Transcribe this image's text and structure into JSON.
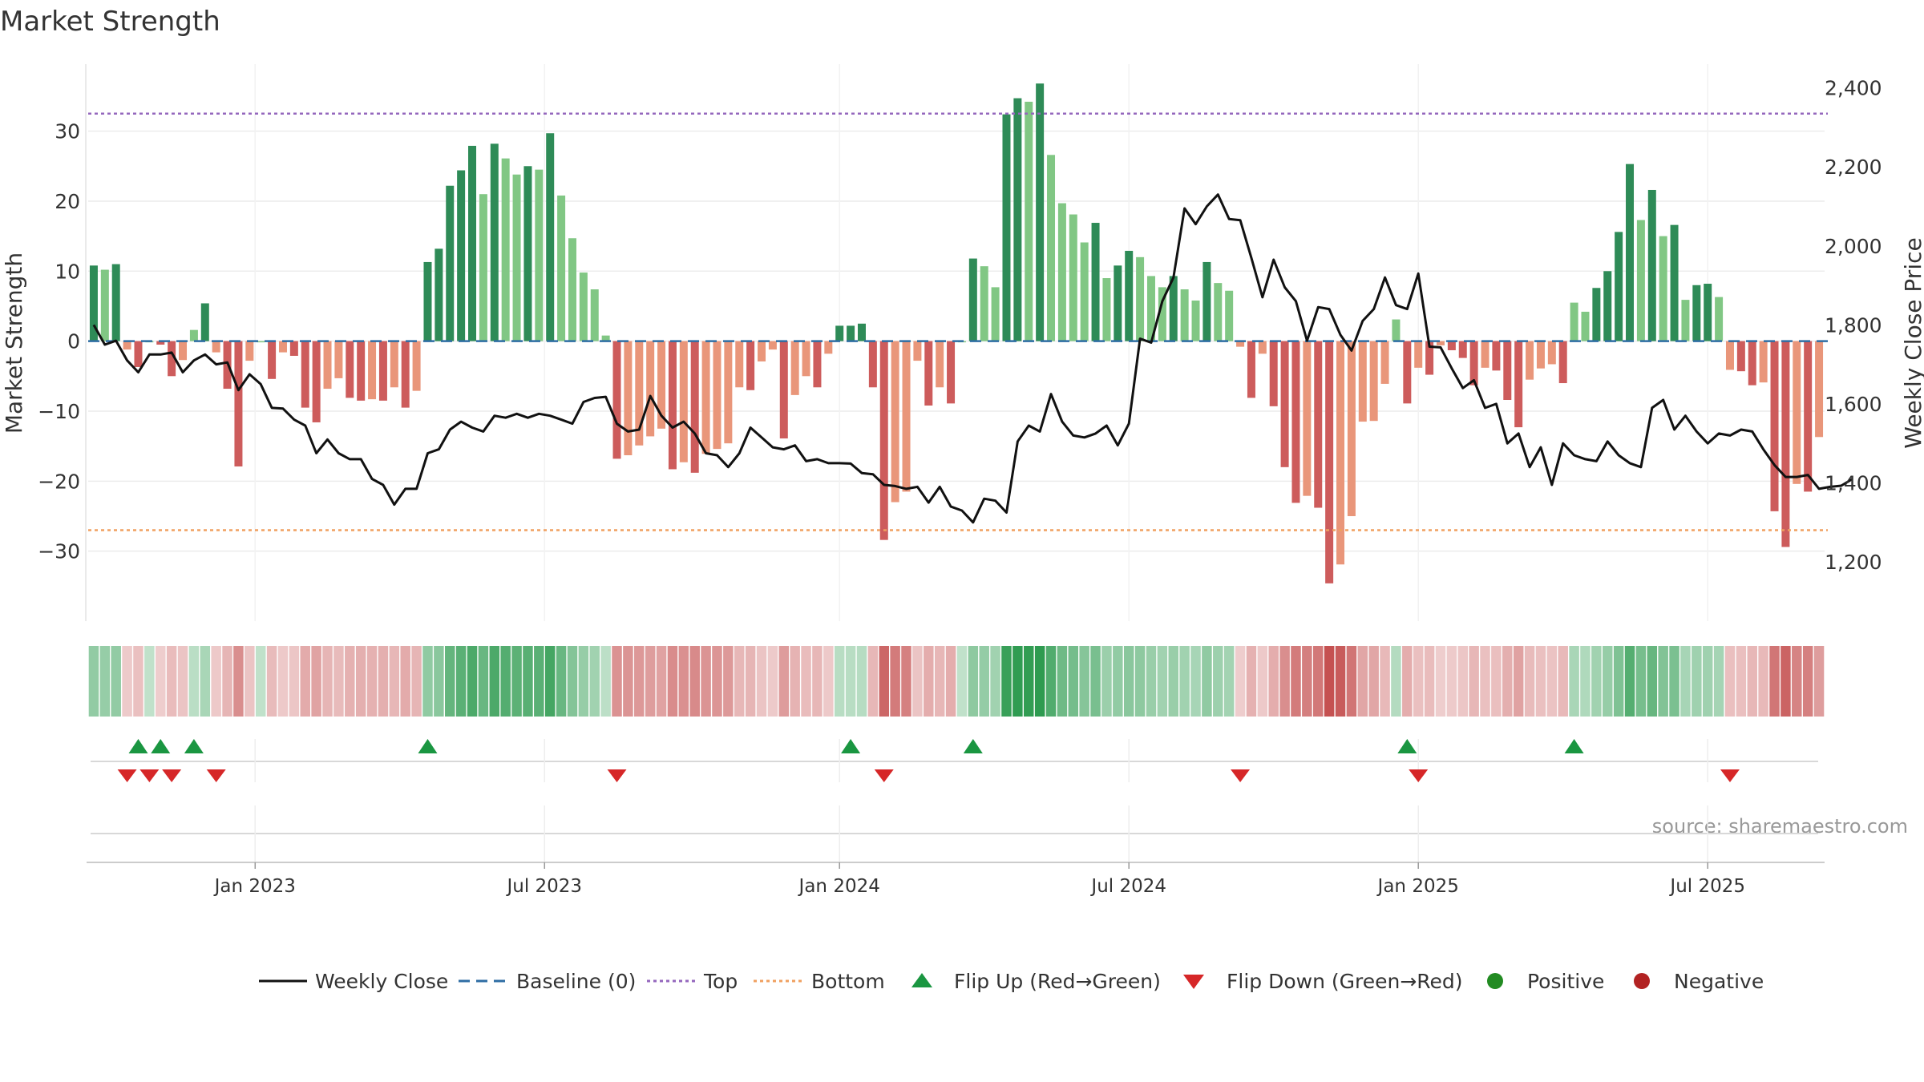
{
  "chart_data": {
    "type": "bar",
    "title": "Market Strength",
    "ylabel_left": "Market Strength",
    "ylabel_right": "Weekly Close Price",
    "source": "source: sharemaestro.com",
    "left_axis": {
      "range": [
        -40,
        39
      ],
      "ticks": [
        30,
        20,
        10,
        0,
        -10,
        -20,
        -30
      ],
      "tick_labels": [
        "30",
        "20",
        "10",
        "0",
        "−10",
        "−20",
        "−30"
      ]
    },
    "right_axis": {
      "range": [
        1050,
        2450
      ],
      "ticks": [
        2400,
        2200,
        2000,
        1800,
        1600,
        1400,
        1200
      ],
      "tick_labels": [
        "2,400",
        "2,200",
        "2,000",
        "1,800",
        "1,600",
        "1,400",
        "1,200"
      ]
    },
    "x_tick_labels": [
      "Jan 2023",
      "Jul 2023",
      "Jan 2024",
      "Jul 2024",
      "Jan 2025",
      "Jul 2025"
    ],
    "x_tick_weeks": [
      15,
      41,
      67.5,
      93.5,
      119.5,
      145.5
    ],
    "reference_lines": {
      "top": 32.5,
      "bottom": -27,
      "baseline": 0
    },
    "strength": [
      10.8,
      10.2,
      11,
      -1.2,
      -3.7,
      0,
      -0.5,
      -5,
      -2.7,
      1.6,
      5.4,
      -1.6,
      -6.8,
      -17.9,
      -2.8,
      0,
      -5.4,
      -1.6,
      -2.1,
      -9.5,
      -11.6,
      -6.8,
      -5.3,
      -8.1,
      -8.5,
      -8.3,
      -8.5,
      -6.6,
      -9.5,
      -7.1,
      11.3,
      13.2,
      22.2,
      24.4,
      27.9,
      21,
      28.2,
      26.1,
      23.8,
      25,
      24.5,
      29.7,
      20.8,
      14.7,
      9.8,
      7.4,
      0.8,
      -16.8,
      -16.3,
      -14.9,
      -13.6,
      -12.5,
      -18.3,
      -17.3,
      -18.8,
      -16.1,
      -15.4,
      -14.6,
      -6.6,
      -7,
      -2.9,
      -1.2,
      -13.9,
      -7.7,
      -5,
      -6.6,
      -1.8,
      2.2,
      2.2,
      2.5,
      -6.6,
      -28.4,
      -23,
      -21.5,
      -2.8,
      -9.2,
      -6.6,
      -8.9,
      0,
      11.8,
      10.7,
      7.7,
      32.4,
      34.7,
      34.2,
      36.8,
      26.6,
      19.7,
      18.1,
      14.1,
      16.9,
      9,
      10.8,
      12.9,
      12,
      9.3,
      7.7,
      9.3,
      7.4,
      5.8,
      11.3,
      8.3,
      7.2,
      -0.8,
      -8.1,
      -1.8,
      -9.3,
      -18,
      -23.1,
      -22.1,
      -23.8,
      -34.6,
      -31.9,
      -25,
      -11.5,
      -11.4,
      -6.1,
      3.1,
      -8.9,
      -3.8,
      -4.8,
      -0.6,
      -1.3,
      -2.4,
      -6.3,
      -3.8,
      -4.2,
      -8.4,
      -12.3,
      -5.5,
      -3.9,
      -3.3,
      -6,
      5.5,
      4.2,
      7.6,
      10,
      15.6,
      25.3,
      17.3,
      21.6,
      15,
      16.6,
      5.9,
      8,
      8.2,
      6.3,
      -4.1,
      -4.3,
      -6.3,
      -5.9,
      -24.3,
      -29.4,
      -20.4,
      -21.5,
      -13.7
    ],
    "weekly_close": [
      1800,
      1750,
      1760,
      1710,
      1680,
      1725,
      1725,
      1730,
      1680,
      1710,
      1725,
      1700,
      1705,
      1635,
      1675,
      1650,
      1590,
      1588,
      1560,
      1545,
      1475,
      1510,
      1475,
      1460,
      1460,
      1410,
      1395,
      1345,
      1385,
      1385,
      1475,
      1485,
      1535,
      1555,
      1540,
      1530,
      1570,
      1565,
      1575,
      1565,
      1575,
      1570,
      1560,
      1550,
      1605,
      1615,
      1618,
      1550,
      1530,
      1535,
      1620,
      1570,
      1540,
      1555,
      1525,
      1475,
      1470,
      1440,
      1475,
      1540,
      1515,
      1490,
      1485,
      1495,
      1455,
      1460,
      1450,
      1450,
      1449,
      1425,
      1422,
      1395,
      1392,
      1385,
      1390,
      1350,
      1390,
      1340,
      1330,
      1300,
      1360,
      1355,
      1325,
      1505,
      1545,
      1530,
      1625,
      1555,
      1520,
      1515,
      1525,
      1545,
      1495,
      1550,
      1765,
      1755,
      1860,
      1920,
      2095,
      2055,
      2100,
      2130,
      2068,
      2065,
      1970,
      1870,
      1965,
      1895,
      1860,
      1760,
      1845,
      1840,
      1775,
      1735,
      1810,
      1840,
      1920,
      1850,
      1840,
      1930,
      1745,
      1743,
      1690,
      1640,
      1660,
      1590,
      1600,
      1500,
      1525,
      1440,
      1490,
      1395,
      1500,
      1470,
      1460,
      1455,
      1505,
      1470,
      1450,
      1440,
      1590,
      1610,
      1535,
      1570,
      1530,
      1500,
      1525,
      1520,
      1535,
      1530,
      1485,
      1445,
      1415,
      1415,
      1420,
      1385,
      1390,
      1393,
      1410
    ]
  },
  "regime_colors": {
    "green_strong": "#2e8b57",
    "green_light": "#81c784",
    "red_strong": "#cd5c5c",
    "red_light": "#e9967a"
  },
  "flips": {
    "up_weeks": [
      4,
      6,
      9,
      30,
      68,
      79,
      118,
      133
    ],
    "down_weeks": [
      3,
      5,
      7,
      11,
      47,
      71,
      103,
      119,
      147
    ]
  },
  "legend": {
    "weekly_close": "Weekly Close",
    "baseline": "Baseline (0)",
    "top": "Top",
    "bottom": "Bottom",
    "flip_up": "Flip Up (Red→Green)",
    "flip_down": "Flip Down (Green→Red)",
    "positive": "Positive",
    "negative": "Negative"
  },
  "colors": {
    "line": "#111111",
    "baseline": "#2e6da4",
    "top": "#9467bd",
    "bottom": "#f0a060",
    "flip_up": "#1a9641",
    "flip_down": "#d62728",
    "positive": "#228b22",
    "negative": "#b22222"
  }
}
